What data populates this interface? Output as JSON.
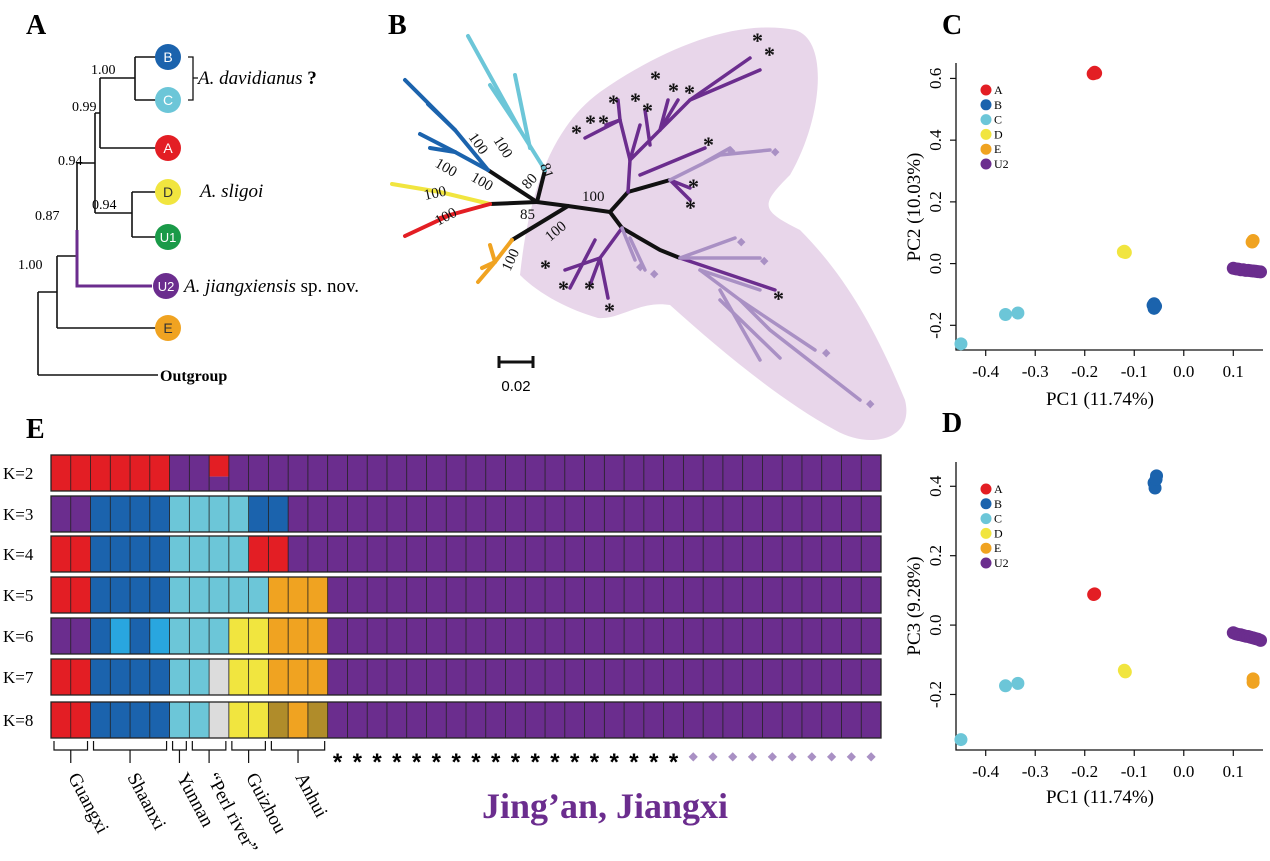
{
  "panels": {
    "a": "A",
    "b": "B",
    "c": "C",
    "d": "D",
    "e": "E"
  },
  "colors": {
    "A": "#e31e24",
    "B": "#1b63ad",
    "C": "#6cc6d8",
    "D": "#f1e53f",
    "E": "#f0a321",
    "U1": "#1a9a48",
    "U2": "#6b2d8e",
    "U2light": "#a990c4",
    "Bmid": "#29a6df",
    "F": "#b08c2a",
    "G": "#dcdcdc",
    "shade": "#e8d6ea"
  },
  "tree_a": {
    "supports": [
      "1.00",
      "0.99",
      "0.94",
      "0.94",
      "0.87",
      "1.00"
    ],
    "tips": [
      {
        "id": "B",
        "label": "B"
      },
      {
        "id": "C",
        "label": "C"
      },
      {
        "id": "A",
        "label": "A"
      },
      {
        "id": "D",
        "label": "D"
      },
      {
        "id": "U1",
        "label": "U1"
      },
      {
        "id": "U2",
        "label": "U2"
      },
      {
        "id": "E",
        "label": "E"
      }
    ],
    "outgroup": "Outgroup",
    "species": {
      "davidianus_name": "A. davidianus",
      "davidianus_q": " ?",
      "sligoi": "A. sligoi",
      "jiangxiensis_name": "A. jiangxiensis",
      "jiangxiensis_suffix": " sp. nov."
    }
  },
  "tree_b": {
    "supports": [
      "100",
      "100",
      "100",
      "100",
      "100",
      "100",
      "81",
      "80",
      "100",
      "85",
      "100",
      "100"
    ],
    "scale": "0.02",
    "star": "*",
    "diamond": "◆"
  },
  "pca_c": {
    "xlabel": "PC1 (11.74%)",
    "ylabel": "PC2 (10.03%)",
    "xticks": [
      "-0.4",
      "-0.3",
      "-0.2",
      "-0.1",
      "0.0",
      "0.1"
    ],
    "yticks": [
      "0.6",
      "0.4",
      "0.2",
      "0.0",
      "-0.2"
    ],
    "legend": [
      "A",
      "B",
      "C",
      "D",
      "E",
      "U2"
    ]
  },
  "pca_d": {
    "xlabel": "PC1 (11.74%)",
    "ylabel": "PC3 (9.28%)",
    "xticks": [
      "-0.4",
      "-0.3",
      "-0.2",
      "-0.1",
      "0.0",
      "0.1"
    ],
    "yticks": [
      "0.4",
      "0.2",
      "0.0",
      "-0.2"
    ],
    "legend": [
      "A",
      "B",
      "C",
      "D",
      "E",
      "U2"
    ]
  },
  "chart_data": [
    {
      "type": "scatter",
      "title": "C",
      "xlabel": "PC1 (11.74%)",
      "ylabel": "PC2 (10.03%)",
      "xlim": [
        -0.46,
        0.16
      ],
      "ylim": [
        -0.28,
        0.65
      ],
      "series": [
        {
          "name": "A",
          "points": [
            [
              -0.18,
              0.62
            ],
            [
              -0.183,
              0.615
            ],
            [
              -0.178,
              0.617
            ]
          ]
        },
        {
          "name": "B",
          "points": [
            [
              -0.06,
              -0.13
            ],
            [
              -0.062,
              -0.135
            ],
            [
              -0.058,
              -0.14
            ],
            [
              -0.06,
              -0.145
            ],
            [
              -0.057,
              -0.138
            ]
          ]
        },
        {
          "name": "C",
          "points": [
            [
              -0.45,
              -0.26
            ],
            [
              -0.36,
              -0.165
            ],
            [
              -0.335,
              -0.16
            ]
          ]
        },
        {
          "name": "D",
          "points": [
            [
              -0.12,
              0.04
            ],
            [
              -0.118,
              0.036
            ],
            [
              -0.122,
              0.038
            ]
          ]
        },
        {
          "name": "E",
          "points": [
            [
              0.14,
              0.075
            ],
            [
              0.138,
              0.07
            ]
          ]
        },
        {
          "name": "U2",
          "points": [
            [
              0.1,
              -0.015
            ],
            [
              0.105,
              -0.017
            ],
            [
              0.11,
              -0.018
            ],
            [
              0.115,
              -0.02
            ],
            [
              0.12,
              -0.02
            ],
            [
              0.125,
              -0.022
            ],
            [
              0.13,
              -0.022
            ],
            [
              0.135,
              -0.023
            ],
            [
              0.14,
              -0.024
            ],
            [
              0.145,
              -0.025
            ],
            [
              0.15,
              -0.026
            ],
            [
              0.155,
              -0.027
            ]
          ]
        }
      ],
      "legend": "top-left"
    },
    {
      "type": "scatter",
      "title": "D",
      "xlabel": "PC1 (11.74%)",
      "ylabel": "PC3 (9.28%)",
      "xlim": [
        -0.46,
        0.16
      ],
      "ylim": [
        -0.36,
        0.47
      ],
      "series": [
        {
          "name": "A",
          "points": [
            [
              -0.18,
              0.09
            ],
            [
              -0.182,
              0.088
            ]
          ]
        },
        {
          "name": "B",
          "points": [
            [
              -0.055,
              0.43
            ],
            [
              -0.06,
              0.41
            ],
            [
              -0.058,
              0.395
            ],
            [
              -0.056,
              0.42
            ]
          ]
        },
        {
          "name": "C",
          "points": [
            [
              -0.45,
              -0.33
            ],
            [
              -0.36,
              -0.175
            ],
            [
              -0.335,
              -0.168
            ]
          ]
        },
        {
          "name": "D",
          "points": [
            [
              -0.12,
              -0.13
            ],
            [
              -0.118,
              -0.135
            ]
          ]
        },
        {
          "name": "E",
          "points": [
            [
              0.14,
              -0.155
            ],
            [
              0.14,
              -0.165
            ]
          ]
        },
        {
          "name": "U2",
          "points": [
            [
              0.1,
              -0.022
            ],
            [
              0.105,
              -0.025
            ],
            [
              0.11,
              -0.027
            ],
            [
              0.115,
              -0.028
            ],
            [
              0.12,
              -0.03
            ],
            [
              0.125,
              -0.032
            ],
            [
              0.13,
              -0.033
            ],
            [
              0.135,
              -0.035
            ],
            [
              0.14,
              -0.037
            ],
            [
              0.145,
              -0.039
            ],
            [
              0.15,
              -0.041
            ],
            [
              0.155,
              -0.044
            ]
          ]
        }
      ],
      "legend": "top-left"
    }
  ],
  "structure_e": {
    "k_labels": [
      "K=2",
      "K=3",
      "K=4",
      "K=5",
      "K=6",
      "K=7",
      "K=8"
    ],
    "n_individuals": 42,
    "rows": [
      [
        "A",
        "A",
        "A",
        "A",
        "A",
        "A",
        "U2",
        "U2",
        "A|U2",
        "U2",
        "U2",
        "U2",
        "U2",
        "U2",
        "U2",
        "U2",
        "U2",
        "U2",
        "U2",
        "U2",
        "U2",
        "U2",
        "U2",
        "U2",
        "U2",
        "U2",
        "U2",
        "U2",
        "U2",
        "U2",
        "U2",
        "U2",
        "U2",
        "U2",
        "U2",
        "U2",
        "U2",
        "U2",
        "U2",
        "U2",
        "U2",
        "U2"
      ],
      [
        "U2",
        "U2",
        "B",
        "B",
        "B",
        "B",
        "C",
        "C",
        "C",
        "C",
        "B",
        "B",
        "U2",
        "U2",
        "U2",
        "U2",
        "U2",
        "U2",
        "U2",
        "U2",
        "U2",
        "U2",
        "U2",
        "U2",
        "U2",
        "U2",
        "U2",
        "U2",
        "U2",
        "U2",
        "U2",
        "U2",
        "U2",
        "U2",
        "U2",
        "U2",
        "U2",
        "U2",
        "U2",
        "U2",
        "U2",
        "U2"
      ],
      [
        "A",
        "A",
        "B",
        "B",
        "B",
        "B",
        "C",
        "C",
        "C",
        "C",
        "A",
        "A",
        "U2",
        "U2",
        "U2",
        "U2",
        "U2",
        "U2",
        "U2",
        "U2",
        "U2",
        "U2",
        "U2",
        "U2",
        "U2",
        "U2",
        "U2",
        "U2",
        "U2",
        "U2",
        "U2",
        "U2",
        "U2",
        "U2",
        "U2",
        "U2",
        "U2",
        "U2",
        "U2",
        "U2",
        "U2",
        "U2"
      ],
      [
        "A",
        "A",
        "B",
        "B",
        "B",
        "B",
        "C",
        "C",
        "C",
        "C",
        "C",
        "E",
        "E",
        "E",
        "U2",
        "U2",
        "U2",
        "U2",
        "U2",
        "U2",
        "U2",
        "U2",
        "U2",
        "U2",
        "U2",
        "U2",
        "U2",
        "U2",
        "U2",
        "U2",
        "U2",
        "U2",
        "U2",
        "U2",
        "U2",
        "U2",
        "U2",
        "U2",
        "U2",
        "U2",
        "U2",
        "U2"
      ],
      [
        "U2",
        "U2",
        "B",
        "Bmid",
        "B",
        "Bmid",
        "C",
        "C",
        "C",
        "D",
        "D",
        "E",
        "E",
        "E",
        "U2",
        "U2",
        "U2",
        "U2",
        "U2",
        "U2",
        "U2",
        "U2",
        "U2",
        "U2",
        "U2",
        "U2",
        "U2",
        "U2",
        "U2",
        "U2",
        "U2",
        "U2",
        "U2",
        "U2",
        "U2",
        "U2",
        "U2",
        "U2",
        "U2",
        "U2",
        "U2",
        "U2"
      ],
      [
        "A",
        "A",
        "B",
        "B",
        "B",
        "B",
        "C",
        "C",
        "G",
        "D",
        "D",
        "E",
        "E",
        "E",
        "U2",
        "U2",
        "U2",
        "U2",
        "U2",
        "U2",
        "U2",
        "U2",
        "U2",
        "U2",
        "U2",
        "U2",
        "U2",
        "U2",
        "U2",
        "U2",
        "U2",
        "U2",
        "U2",
        "U2",
        "U2",
        "U2",
        "U2",
        "U2",
        "U2",
        "U2",
        "U2",
        "U2"
      ],
      [
        "A",
        "A",
        "B",
        "B",
        "B",
        "B",
        "C",
        "C",
        "G",
        "D",
        "D",
        "F",
        "E",
        "F",
        "U2",
        "U2",
        "U2",
        "U2",
        "U2",
        "U2",
        "U2",
        "U2",
        "U2",
        "U2",
        "U2",
        "U2",
        "U2",
        "U2",
        "U2",
        "U2",
        "U2",
        "U2",
        "U2",
        "U2",
        "U2",
        "U2",
        "U2",
        "U2",
        "U2",
        "U2",
        "U2",
        "U2"
      ]
    ],
    "populations": [
      "Guangxi",
      "Shaanxi",
      "Yunnan",
      "“Perl river”",
      "Guizhou",
      "Anhui"
    ],
    "pop_ranges": [
      [
        0,
        2
      ],
      [
        2,
        6
      ],
      [
        6,
        7
      ],
      [
        7,
        9
      ],
      [
        9,
        11
      ],
      [
        11,
        14
      ]
    ],
    "star_count": 18,
    "diamond_count": 10,
    "site_label": "Jing’an, Jiangxi"
  }
}
